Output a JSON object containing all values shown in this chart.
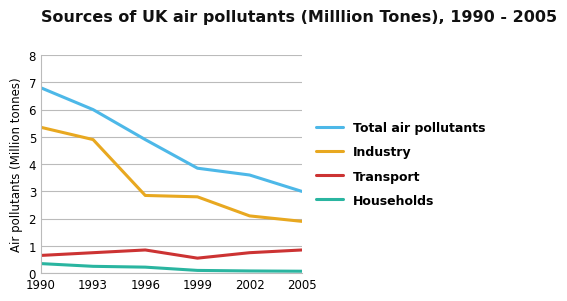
{
  "title": "Sources of UK air pollutants (Milllion Tones), 1990 - 2005",
  "ylabel": "Air pollutants (Million tonnes)",
  "years": [
    1990,
    1993,
    1996,
    1999,
    2002,
    2005
  ],
  "series": {
    "Total air pollutants": {
      "values": [
        6.8,
        6.0,
        4.9,
        3.85,
        3.6,
        3.0
      ],
      "color": "#4db8e8",
      "linewidth": 2.2
    },
    "Industry": {
      "values": [
        5.35,
        4.9,
        2.85,
        2.8,
        2.1,
        1.9
      ],
      "color": "#e8a820",
      "linewidth": 2.2
    },
    "Transport": {
      "values": [
        0.65,
        0.75,
        0.85,
        0.55,
        0.75,
        0.85
      ],
      "color": "#cc3333",
      "linewidth": 2.2
    },
    "Households": {
      "values": [
        0.35,
        0.25,
        0.22,
        0.1,
        0.08,
        0.07
      ],
      "color": "#2ab5a0",
      "linewidth": 2.2
    }
  },
  "xlim": [
    1990,
    2005
  ],
  "ylim": [
    0,
    8
  ],
  "yticks": [
    0,
    1,
    2,
    3,
    4,
    5,
    6,
    7,
    8
  ],
  "xticks": [
    1990,
    1993,
    1996,
    1999,
    2002,
    2005
  ],
  "grid_color": "#bbbbbb",
  "background_color": "#ffffff",
  "plot_bg_color": "#ffffff",
  "title_fontsize": 11.5,
  "axis_label_fontsize": 8.5,
  "tick_fontsize": 8.5,
  "legend_fontsize": 9
}
